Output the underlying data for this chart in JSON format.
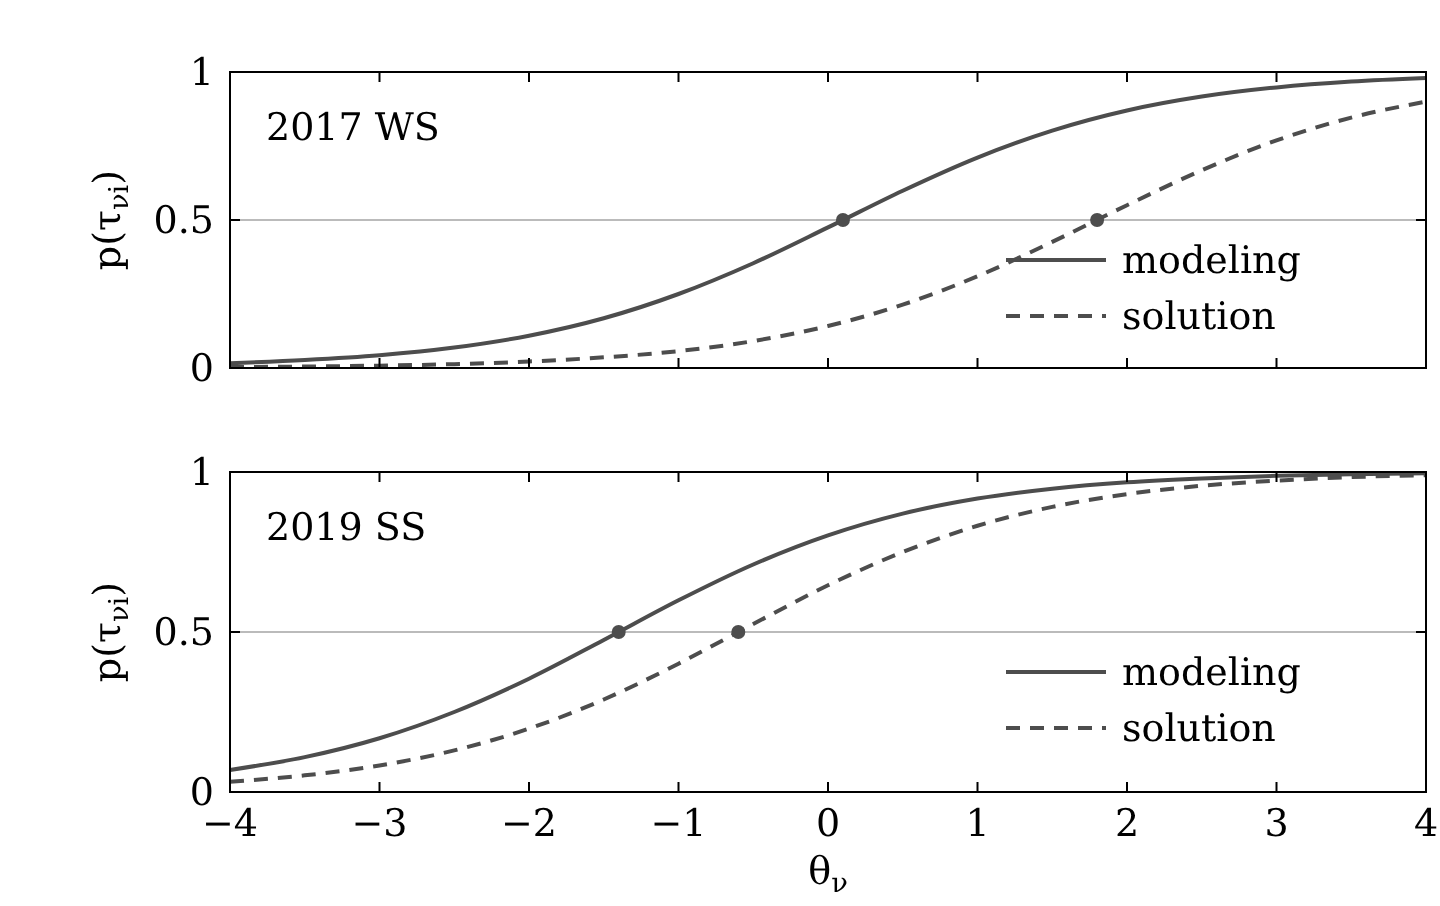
{
  "chart_data": [
    {
      "type": "line",
      "ylabel": "p(τ$_{νi}$)",
      "annotations": [
        "2017 WS"
      ],
      "xlim": [
        -4,
        4
      ],
      "xticks": [
        -4,
        -3,
        -2,
        -1,
        0,
        1,
        2,
        3,
        4
      ],
      "ylim": [
        0,
        1
      ],
      "yticks": [
        0,
        0.5,
        1
      ],
      "grid": "y",
      "legend": "right",
      "tick_labels": "y",
      "x": [
        -4,
        -3.5,
        -3,
        -2.5,
        -2,
        -1.5,
        -1,
        -0.5,
        0,
        0.5,
        1,
        1.5,
        2,
        2.5,
        3,
        3.5,
        4
      ],
      "series": [
        {
          "name": "modeling",
          "color": "#4d4d4d",
          "line_style": "solid",
          "values": [
            0.016,
            0.027,
            0.043,
            0.069,
            0.109,
            0.168,
            0.25,
            0.354,
            0.475,
            0.599,
            0.711,
            0.802,
            0.87,
            0.917,
            0.948,
            0.968,
            0.98
          ]
        },
        {
          "name": "solution",
          "color": "#4d4d4d",
          "line_style": "dashed",
          "values": [
            0.003,
            0.005,
            0.008,
            0.013,
            0.022,
            0.036,
            0.057,
            0.091,
            0.142,
            0.214,
            0.31,
            0.426,
            0.55,
            0.668,
            0.769,
            0.846,
            0.9
          ]
        },
        {
          "type": "scatter",
          "color": "#4d4d4d",
          "marker": "circle",
          "x": [
            0.1,
            1.8
          ],
          "values": [
            0.5,
            0.5
          ]
        }
      ]
    },
    {
      "type": "line",
      "ylabel": "p(τ$_{νi}$)",
      "xlabel": "θ$_{ν}$",
      "annotations": [
        "2019 SS"
      ],
      "xlim": [
        -4,
        4
      ],
      "xticks": [
        {
          "value": -4,
          "label": "−4"
        },
        {
          "value": -3,
          "label": "−3"
        },
        {
          "value": -2,
          "label": "−2"
        },
        {
          "value": -1,
          "label": "−1"
        },
        0,
        1,
        2,
        3,
        4
      ],
      "ylim": [
        0,
        1
      ],
      "yticks": [
        0,
        0.5,
        1
      ],
      "grid": "y",
      "legend": "right",
      "x": [
        -4,
        -3.5,
        -3,
        -2.5,
        -2,
        -1.5,
        -1,
        -0.5,
        0,
        0.5,
        1,
        1.5,
        2,
        2.5,
        3,
        3.5,
        4
      ],
      "series": [
        {
          "name": "modeling",
          "color": "#4d4d4d",
          "line_style": "solid",
          "values": [
            0.069,
            0.109,
            0.168,
            0.25,
            0.354,
            0.475,
            0.599,
            0.711,
            0.802,
            0.87,
            0.917,
            0.948,
            0.968,
            0.98,
            0.988,
            0.993,
            0.996
          ]
        },
        {
          "name": "solution",
          "color": "#4d4d4d",
          "line_style": "dashed",
          "values": [
            0.032,
            0.052,
            0.083,
            0.13,
            0.198,
            0.289,
            0.401,
            0.525,
            0.646,
            0.75,
            0.832,
            0.891,
            0.931,
            0.957,
            0.973,
            0.984,
            0.99
          ]
        },
        {
          "type": "scatter",
          "color": "#4d4d4d",
          "marker": "circle",
          "x": [
            -1.4,
            -0.6
          ],
          "values": [
            0.5,
            0.5
          ]
        }
      ]
    }
  ]
}
